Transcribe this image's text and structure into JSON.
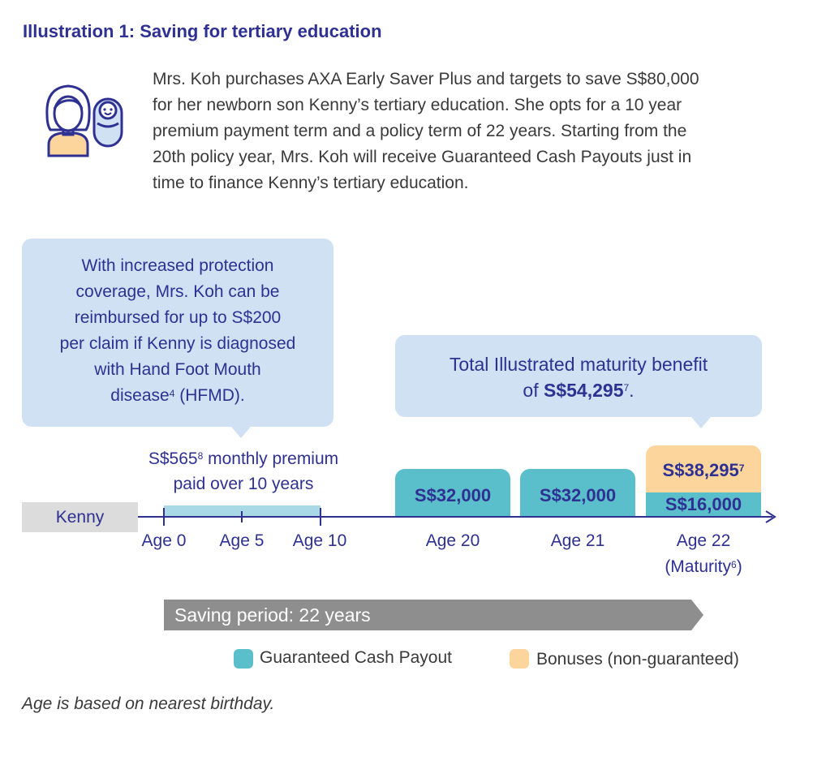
{
  "title": "Illustration 1: Saving for tertiary education",
  "intro_lines": [
    "Mrs. Koh purchases AXA Early Saver Plus and targets to save S$80,000",
    "for her newborn son Kenny’s tertiary education. She opts for a 10 year",
    "premium payment term and a policy term of 22 years. Starting from the",
    "20th policy year, Mrs. Koh will receive Guaranteed Cash Payouts just in",
    "time to finance Kenny’s tertiary education."
  ],
  "icons": {
    "mother": "mother-icon",
    "baby": "swaddled-baby-icon"
  },
  "callout_left": {
    "lines": [
      "With increased protection",
      "coverage, Mrs. Koh can be",
      "reimbursed for up to S$200",
      "per claim if Kenny is diagnosed",
      "with Hand Foot Mouth"
    ],
    "last_line_pre": "disease",
    "last_line_sup": "4",
    "last_line_post": " (HFMD)."
  },
  "callout_right": {
    "line1": "Total Illustrated maturity benefit",
    "line2_pre": "of ",
    "line2_bold": "S$54,295",
    "line2_sup": "7",
    "line2_post": "."
  },
  "premium": {
    "line1_amount": "S$565",
    "line1_sup": "8",
    "line1_post": " monthly premium",
    "line2": "paid over 10 years"
  },
  "timeline": {
    "person": "Kenny",
    "ages": {
      "age0": "Age 0",
      "age5": "Age 5",
      "age10": "Age 10",
      "age20": "Age 20",
      "age21": "Age 21",
      "age22": "Age 22"
    },
    "maturity_pre": "(Maturity",
    "maturity_sup": "6",
    "maturity_post": ")"
  },
  "payouts": {
    "age20": "S$32,000",
    "age21": "S$32,000",
    "age22_guaranteed": "S$16,000",
    "age22_bonus": "S$38,295",
    "age22_bonus_sup": "7"
  },
  "saving_period": "Saving period: 22 years",
  "legend": {
    "payout": "Guaranteed Cash Payout",
    "bonus": "Bonuses (non-guaranteed)"
  },
  "colors": {
    "accent": "#2e3192",
    "payout": "#5bbfcb",
    "bonus": "#fcd59c",
    "callout": "#cfe1f2",
    "premium_bar": "#a9d9e6",
    "saving_bar": "#8e8e8e"
  },
  "footnote": "Age is based on nearest birthday."
}
